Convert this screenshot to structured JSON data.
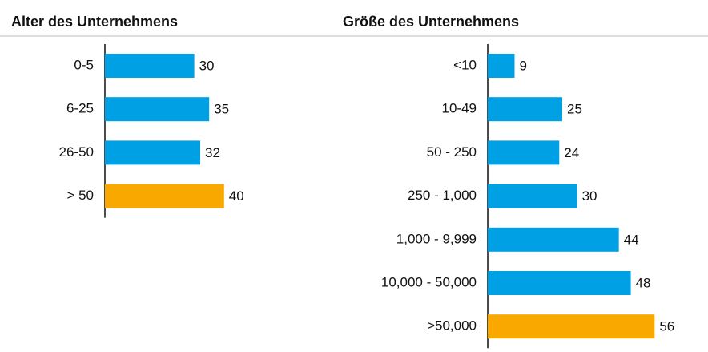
{
  "chart_data": [
    {
      "type": "bar",
      "title": "Alter des Unternehmens",
      "categories": [
        "0-5",
        "6-25",
        "26-50",
        "> 50"
      ],
      "values": [
        30,
        35,
        32,
        40
      ],
      "colors": [
        "#00a1e4",
        "#00a1e4",
        "#00a1e4",
        "#f9a800"
      ]
    },
    {
      "type": "bar",
      "title": "Größe des Unternehmens",
      "categories": [
        "<10",
        "10-49",
        "50 - 250",
        "250 - 1,000",
        "1,000 - 9,999",
        "10,000 - 50,000",
        ">50,000"
      ],
      "values": [
        9,
        25,
        24,
        30,
        44,
        48,
        56
      ],
      "colors": [
        "#00a1e4",
        "#00a1e4",
        "#00a1e4",
        "#00a1e4",
        "#00a1e4",
        "#00a1e4",
        "#f9a800"
      ]
    }
  ]
}
